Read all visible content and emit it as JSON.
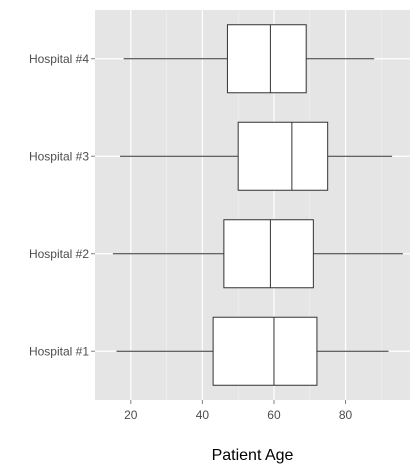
{
  "chart_data": {
    "type": "boxplot",
    "orientation": "horizontal",
    "title": "",
    "xlabel": "Patient Age",
    "ylabel": "",
    "xlim": [
      10,
      98
    ],
    "x_ticks": [
      20,
      40,
      60,
      80
    ],
    "x_tick_labels": [
      "20",
      "40",
      "60",
      "80"
    ],
    "grid": true,
    "legend": "none",
    "colors": {
      "panel_background": "#e5e5e5",
      "grid_major": "#ffffff",
      "grid_minor": "#f2f2f2",
      "box_fill": "#ffffff",
      "box_stroke": "#333333",
      "whisker": "#333333"
    },
    "categories": [
      "Hospital #1",
      "Hospital #2",
      "Hospital #3",
      "Hospital #4"
    ],
    "series": [
      {
        "category": "Hospital #1",
        "min": 16,
        "q1": 43,
        "median": 60,
        "q3": 72,
        "max": 92
      },
      {
        "category": "Hospital #2",
        "min": 15,
        "q1": 46,
        "median": 59,
        "q3": 71,
        "max": 96
      },
      {
        "category": "Hospital #3",
        "min": 17,
        "q1": 50,
        "median": 65,
        "q3": 75,
        "max": 93
      },
      {
        "category": "Hospital #4",
        "min": 18,
        "q1": 47,
        "median": 59,
        "q3": 69,
        "max": 88
      }
    ]
  }
}
